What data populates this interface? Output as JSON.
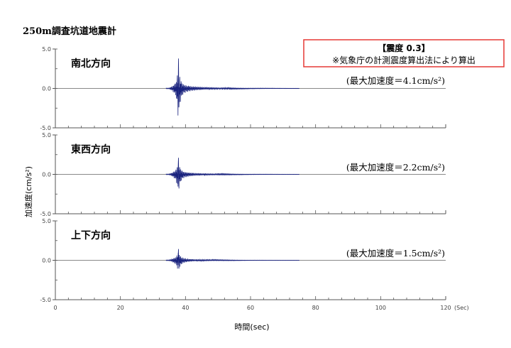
{
  "title": "250m調査坑道地震計",
  "intensity_box": {
    "title": "【震度 0.3】",
    "note": "※気象庁の計測震度算出法により算出"
  },
  "xlabel": "時間(sec)",
  "ylabel": "加速度(cm/s²)",
  "x_unit": "(Sec)",
  "colors": {
    "trace": "#1a237e",
    "axis": "#555555",
    "zero": "#888888",
    "box_border": "#e53935"
  },
  "chart_data": {
    "type": "line",
    "xlim": [
      0,
      120
    ],
    "ylim": [
      -5.0,
      5.0
    ],
    "x_ticks": [
      "0",
      "20",
      "40",
      "60",
      "80",
      "100",
      "120"
    ],
    "y_ticks": [
      "5.0",
      "0.0",
      "-5.0"
    ],
    "grid": false,
    "panels": [
      {
        "title": "南北方向",
        "pga_label": "(最大加速度＝4.1cm/s²)",
        "series": {
          "x": [
            0,
            35,
            36,
            37,
            37.5,
            37.8,
            38.0,
            38.2,
            38.5,
            38.8,
            39.2,
            39.7,
            40.5,
            42,
            45,
            50,
            55,
            60,
            70,
            120
          ],
          "envelope": [
            0,
            0.04,
            0.35,
            0.9,
            2.2,
            4.1,
            2.9,
            2.2,
            1.6,
            1.1,
            0.8,
            0.6,
            0.45,
            0.32,
            0.2,
            0.12,
            0.07,
            0.04,
            0.02,
            0
          ]
        }
      },
      {
        "title": "東西方向",
        "pga_label": "(最大加速度＝2.2cm/s²)",
        "series": {
          "x": [
            0,
            35,
            36,
            37,
            37.5,
            37.8,
            38.0,
            38.2,
            38.5,
            38.8,
            39.2,
            39.7,
            40.5,
            42,
            45,
            50,
            55,
            60,
            70,
            120
          ],
          "envelope": [
            0,
            0.04,
            0.3,
            0.7,
            1.5,
            2.2,
            1.8,
            1.4,
            1.0,
            0.75,
            0.55,
            0.42,
            0.32,
            0.22,
            0.14,
            0.09,
            0.05,
            0.03,
            0.015,
            0
          ]
        }
      },
      {
        "title": "上下方向",
        "pga_label": "(最大加速度＝1.5cm/s²)",
        "series": {
          "x": [
            0,
            35,
            36,
            37,
            37.5,
            37.8,
            38.0,
            38.2,
            38.5,
            38.8,
            39.2,
            39.7,
            40.5,
            42,
            45,
            50,
            55,
            60,
            70,
            120
          ],
          "envelope": [
            0,
            0.04,
            0.25,
            0.5,
            1.0,
            1.5,
            1.2,
            0.9,
            0.7,
            0.52,
            0.4,
            0.3,
            0.22,
            0.15,
            0.1,
            0.06,
            0.04,
            0.02,
            0.01,
            0
          ]
        }
      }
    ]
  }
}
